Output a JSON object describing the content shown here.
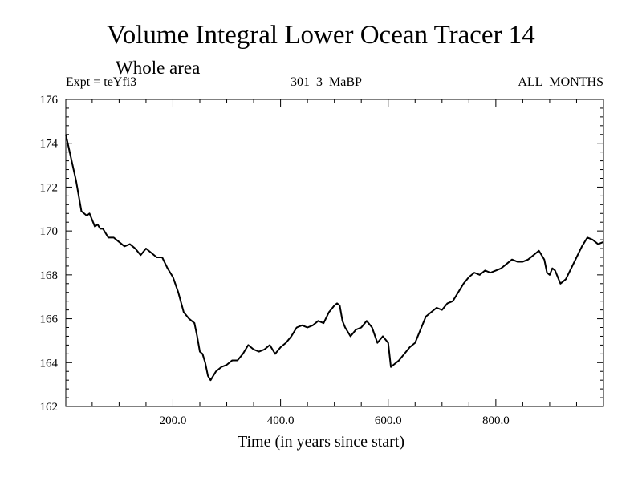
{
  "chart_data": {
    "type": "line",
    "title": "Volume Integral Lower Ocean Tracer 14",
    "subtitle": "Whole area",
    "label_left": "Expt = teYfi3",
    "label_center": "301_3_MaBP",
    "label_right": "ALL_MONTHS",
    "xlabel": "Time (in years since start)",
    "ylabel": "",
    "xlim": [
      1,
      1000
    ],
    "ylim": [
      162,
      176
    ],
    "xticks": [
      {
        "value": 200,
        "label": "200.0"
      },
      {
        "value": 400,
        "label": "400.0"
      },
      {
        "value": 600,
        "label": "600.0"
      },
      {
        "value": 800,
        "label": "800.0"
      }
    ],
    "yticks": [
      {
        "value": 162,
        "label": "162"
      },
      {
        "value": 164,
        "label": "164"
      },
      {
        "value": 166,
        "label": "166"
      },
      {
        "value": 168,
        "label": "168"
      },
      {
        "value": 170,
        "label": "170"
      },
      {
        "value": 172,
        "label": "172"
      },
      {
        "value": 174,
        "label": "174"
      },
      {
        "value": 176,
        "label": "176"
      }
    ],
    "series": [
      {
        "name": "teYfi3",
        "x": [
          1,
          10,
          20,
          30,
          40,
          45,
          55,
          60,
          65,
          70,
          80,
          90,
          100,
          110,
          120,
          130,
          140,
          150,
          160,
          170,
          180,
          190,
          200,
          210,
          220,
          230,
          240,
          245,
          250,
          255,
          260,
          265,
          270,
          275,
          280,
          290,
          300,
          310,
          320,
          330,
          340,
          350,
          360,
          370,
          380,
          390,
          400,
          410,
          420,
          430,
          440,
          450,
          460,
          470,
          480,
          490,
          500,
          505,
          510,
          515,
          520,
          530,
          540,
          550,
          560,
          570,
          580,
          590,
          600,
          605,
          610,
          620,
          630,
          640,
          650,
          660,
          670,
          680,
          690,
          700,
          710,
          720,
          730,
          740,
          750,
          760,
          770,
          780,
          790,
          800,
          810,
          820,
          830,
          840,
          850,
          860,
          870,
          880,
          890,
          895,
          900,
          905,
          910,
          920,
          930,
          940,
          950,
          960,
          970,
          980,
          990,
          1000
        ],
        "values": [
          174.4,
          173.4,
          172.3,
          170.9,
          170.7,
          170.8,
          170.2,
          170.3,
          170.1,
          170.1,
          169.7,
          169.7,
          169.5,
          169.3,
          169.4,
          169.2,
          168.9,
          169.2,
          169.0,
          168.8,
          168.8,
          168.3,
          167.9,
          167.2,
          166.3,
          166.0,
          165.8,
          165.2,
          164.5,
          164.4,
          164.0,
          163.4,
          163.2,
          163.4,
          163.6,
          163.8,
          163.9,
          164.1,
          164.1,
          164.4,
          164.8,
          164.6,
          164.5,
          164.6,
          164.8,
          164.4,
          164.7,
          164.9,
          165.2,
          165.6,
          165.7,
          165.6,
          165.7,
          165.9,
          165.8,
          166.3,
          166.6,
          166.7,
          166.6,
          165.9,
          165.6,
          165.2,
          165.5,
          165.6,
          165.9,
          165.6,
          164.9,
          165.2,
          164.9,
          163.8,
          163.9,
          164.1,
          164.4,
          164.7,
          164.9,
          165.5,
          166.1,
          166.3,
          166.5,
          166.4,
          166.7,
          166.8,
          167.2,
          167.6,
          167.9,
          168.1,
          168.0,
          168.2,
          168.1,
          168.2,
          168.3,
          168.5,
          168.7,
          168.6,
          168.6,
          168.7,
          168.9,
          169.1,
          168.7,
          168.1,
          168.0,
          168.3,
          168.2,
          167.6,
          167.8,
          168.3,
          168.8,
          169.3,
          169.7,
          169.6,
          169.4,
          169.5
        ]
      }
    ]
  }
}
